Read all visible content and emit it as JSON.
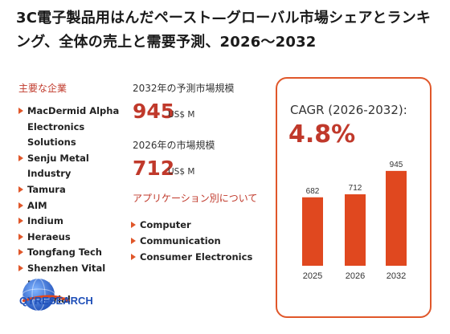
{
  "title": "3C電子製品用はんだペースト—グローバル市場シェアとランキング、全体の売上と需要予測、2026〜2032",
  "companies": {
    "heading": "主要な企業",
    "items": [
      "MacDermid Alpha",
      "Electronics Solutions",
      "Senju Metal Industry",
      "Tamura",
      "AIM",
      "Indium",
      "Heraeus",
      "Tongfang Tech",
      "Shenzhen Vital New",
      "Material"
    ]
  },
  "market_2032": {
    "label": "2032年の予測市場規模",
    "value": "945",
    "unit": "US$ M"
  },
  "market_2026": {
    "label": "2026年の市場規模",
    "value": "712",
    "unit": "US$ M"
  },
  "applications": {
    "heading": "アプリケーション別について",
    "items": [
      "Computer",
      "Communication",
      "Consumer Electronics"
    ]
  },
  "cagr": {
    "label": "CAGR (2026-2032):",
    "value": "4.8%"
  },
  "colors": {
    "accent": "#e0572a",
    "dark_accent": "#c0392b",
    "bar": "#e0481f"
  },
  "logo": {
    "brand_text": "QYRESEARCH",
    "icon": "globe-icon"
  },
  "chart_data": {
    "type": "bar",
    "categories": [
      "2025",
      "2026",
      "2032"
    ],
    "values": [
      682,
      712,
      945
    ],
    "title": "",
    "xlabel": "",
    "ylabel": "",
    "ylim": [
      0,
      1000
    ],
    "grid": false,
    "legend": "none"
  }
}
